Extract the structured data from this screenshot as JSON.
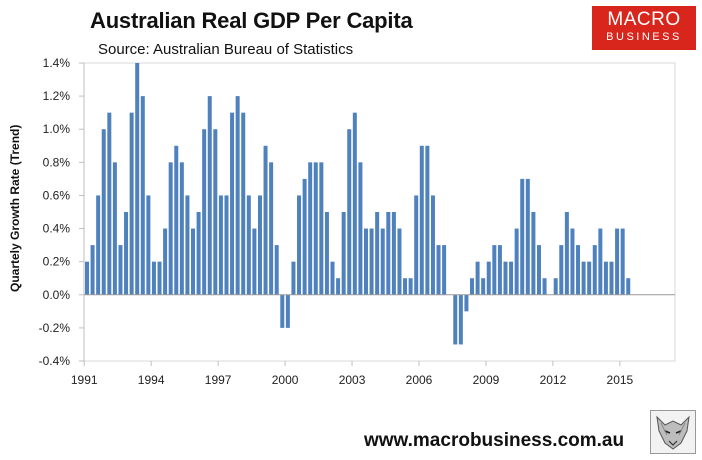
{
  "header": {
    "title": "Australian Real GDP Per Capita",
    "source": "Source: Australian Bureau of Statistics"
  },
  "logo": {
    "line1": "MACRO",
    "line2": "BUSINESS"
  },
  "footer": {
    "url": "www.macrobusiness.com.au"
  },
  "chart_data": {
    "type": "bar",
    "title": "Australian Real GDP Per Capita",
    "subtitle": "Source: Australian Bureau of Statistics",
    "xlabel": "",
    "ylabel": "Quartely Growth Rate (Trend)",
    "ylim": [
      -0.4,
      1.4
    ],
    "ytick_values": [
      -0.4,
      -0.2,
      0.0,
      0.2,
      0.4,
      0.6,
      0.8,
      1.0,
      1.2,
      1.4
    ],
    "ytick_labels": [
      "-0.4%",
      "-0.2%",
      "0.0%",
      "0.2%",
      "0.4%",
      "0.6%",
      "0.8%",
      "1.0%",
      "1.2%",
      "1.4%"
    ],
    "x_start_year": 1991,
    "periods_per_year": 4,
    "xtick_years": [
      1991,
      1994,
      1997,
      2000,
      2003,
      2006,
      2009,
      2012,
      2015
    ],
    "grid": false,
    "series": [
      {
        "name": "Quarterly growth rate (trend)",
        "color": "#4f81bd",
        "values": [
          0.2,
          0.3,
          0.6,
          1.0,
          1.1,
          0.8,
          0.3,
          0.5,
          1.1,
          1.4,
          1.2,
          0.6,
          0.2,
          0.2,
          0.4,
          0.8,
          0.9,
          0.8,
          0.6,
          0.4,
          0.5,
          1.0,
          1.2,
          1.0,
          0.6,
          0.6,
          1.1,
          1.2,
          1.1,
          0.6,
          0.4,
          0.6,
          0.9,
          0.8,
          0.3,
          -0.2,
          -0.2,
          0.2,
          0.6,
          0.7,
          0.8,
          0.8,
          0.8,
          0.5,
          0.2,
          0.1,
          0.5,
          1.0,
          1.1,
          0.8,
          0.4,
          0.4,
          0.5,
          0.4,
          0.5,
          0.5,
          0.4,
          0.1,
          0.1,
          0.6,
          0.9,
          0.9,
          0.6,
          0.3,
          0.3,
          0.0,
          -0.3,
          -0.3,
          -0.1,
          0.1,
          0.2,
          0.1,
          0.2,
          0.3,
          0.3,
          0.2,
          0.2,
          0.4,
          0.7,
          0.7,
          0.5,
          0.3,
          0.1,
          0.0,
          0.1,
          0.3,
          0.5,
          0.4,
          0.3,
          0.2,
          0.2,
          0.3,
          0.4,
          0.2,
          0.2,
          0.4,
          0.4,
          0.1
        ]
      }
    ]
  }
}
